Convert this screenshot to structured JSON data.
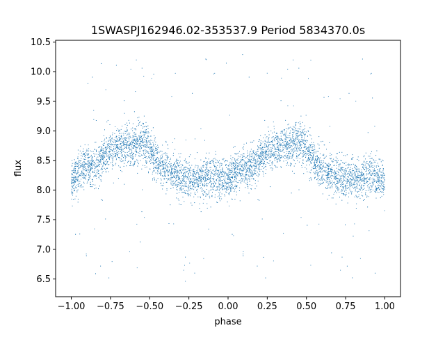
{
  "chart_data": {
    "type": "scatter",
    "title": "1SWASPJ162946.02-353537.9 Period 5834370.0s",
    "xlabel": "phase",
    "ylabel": "flux",
    "xlim": [
      -1.1,
      1.1
    ],
    "ylim": [
      6.2,
      10.53
    ],
    "x_ticks": [
      -1.0,
      -0.75,
      -0.5,
      -0.25,
      0.0,
      0.25,
      0.5,
      0.75,
      1.0
    ],
    "x_tick_labels": [
      "−1.00",
      "−0.75",
      "−0.50",
      "−0.25",
      "0.00",
      "0.25",
      "0.50",
      "0.75",
      "1.00"
    ],
    "y_ticks": [
      6.5,
      7.0,
      7.5,
      8.0,
      8.5,
      9.0,
      9.5,
      10.0,
      10.5
    ],
    "y_tick_labels": [
      "6.5",
      "7.0",
      "7.5",
      "8.0",
      "8.5",
      "9.0",
      "9.5",
      "10.0",
      "10.5"
    ],
    "grid": false,
    "legend": "none",
    "marker_color": "#1f77b4",
    "phase_profile": {
      "phase": [
        0.0,
        0.05,
        0.1,
        0.15,
        0.2,
        0.25,
        0.3,
        0.35,
        0.4,
        0.45,
        0.5,
        0.55,
        0.6,
        0.65,
        0.7,
        0.75,
        0.8,
        0.85,
        0.9,
        0.95,
        1.0
      ],
      "median_flux": [
        8.15,
        8.3,
        8.4,
        8.4,
        8.55,
        8.65,
        8.7,
        8.75,
        8.75,
        8.85,
        8.7,
        8.45,
        8.35,
        8.3,
        8.2,
        8.2,
        8.2,
        8.2,
        8.25,
        8.2,
        8.15
      ]
    },
    "points_per_cycle": 2600
  }
}
